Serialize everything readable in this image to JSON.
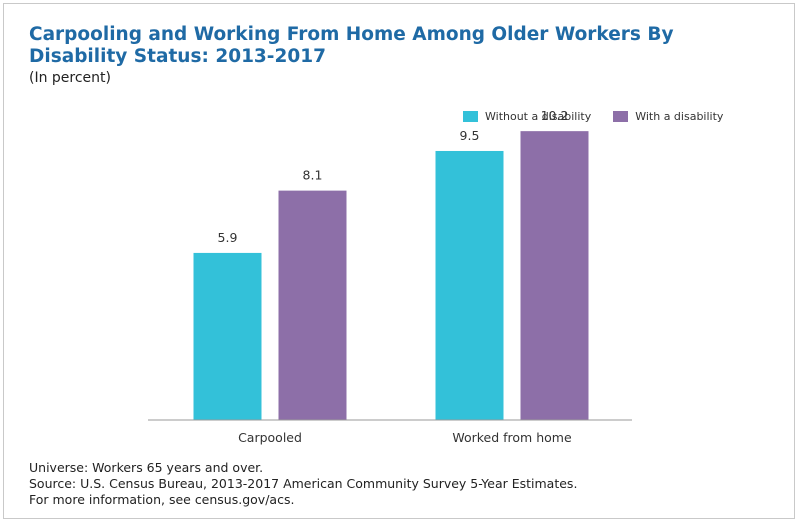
{
  "title": "Carpooling and Working From Home Among Older Workers By Disability Status: 2013-2017",
  "subtitle": "(In percent)",
  "colors": {
    "without": "#33c1d9",
    "with": "#8d6fa8",
    "axis": "#9a9a9a",
    "text": "#333333"
  },
  "legend": {
    "without": "Without a disability",
    "with": "With a disability"
  },
  "chart_data": {
    "type": "bar",
    "categories": [
      "Carpooled",
      "Worked from home"
    ],
    "series": [
      {
        "name": "Without a disability",
        "values": [
          5.9,
          9.5
        ]
      },
      {
        "name": "With a disability",
        "values": [
          8.1,
          10.2
        ]
      }
    ],
    "ylim": [
      0,
      11.3
    ],
    "xlabel": "",
    "ylabel": "",
    "grid": false,
    "legend_position": "top-right"
  },
  "footnotes": {
    "universe": "Universe: Workers 65 years and over.",
    "source": "Source: U.S. Census Bureau, 2013-2017 American Community Survey 5-Year Estimates.",
    "info": "For more information, see census.gov/acs."
  }
}
